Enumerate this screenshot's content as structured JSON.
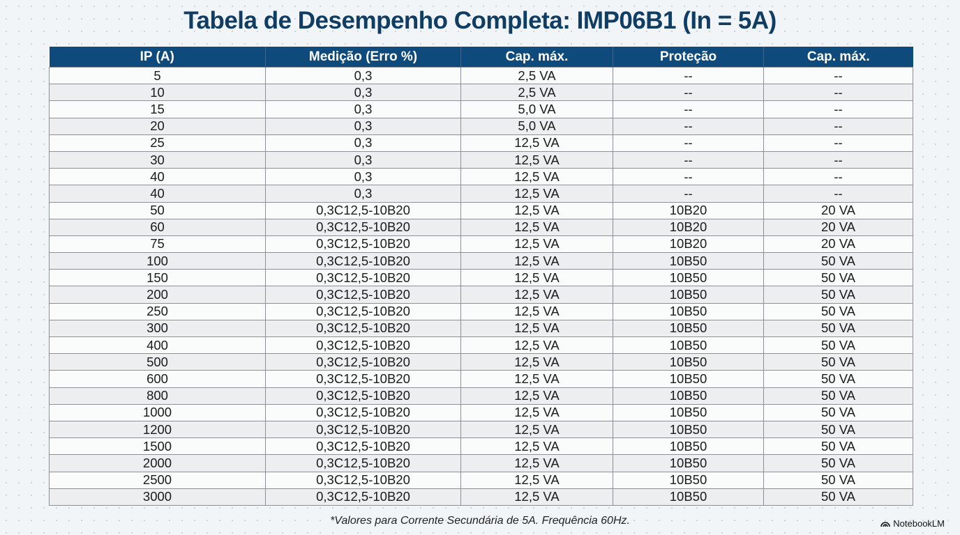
{
  "title": "Tabela de Desempenho Completa: IMP06B1 (In = 5A)",
  "table": {
    "headers": [
      "IP (A)",
      "Medição (Erro %)",
      "Cap. máx.",
      "Proteção",
      "Cap. máx."
    ],
    "rows": [
      [
        "5",
        "0,3",
        "2,5 VA",
        "--",
        "--"
      ],
      [
        "10",
        "0,3",
        "2,5 VA",
        "--",
        "--"
      ],
      [
        "15",
        "0,3",
        "5,0 VA",
        "--",
        "--"
      ],
      [
        "20",
        "0,3",
        "5,0 VA",
        "--",
        "--"
      ],
      [
        "25",
        "0,3",
        "12,5 VA",
        "--",
        "--"
      ],
      [
        "30",
        "0,3",
        "12,5 VA",
        "--",
        "--"
      ],
      [
        "40",
        "0,3",
        "12,5 VA",
        "--",
        "--"
      ],
      [
        "40",
        "0,3",
        "12,5 VA",
        "--",
        "--"
      ],
      [
        "50",
        "0,3C12,5-10B20",
        "12,5 VA",
        "10B20",
        "20 VA"
      ],
      [
        "60",
        "0,3C12,5-10B20",
        "12,5 VA",
        "10B20",
        "20 VA"
      ],
      [
        "75",
        "0,3C12,5-10B20",
        "12,5 VA",
        "10B20",
        "20 VA"
      ],
      [
        "100",
        "0,3C12,5-10B20",
        "12,5 VA",
        "10B50",
        "50 VA"
      ],
      [
        "150",
        "0,3C12,5-10B20",
        "12,5 VA",
        "10B50",
        "50 VA"
      ],
      [
        "200",
        "0,3C12,5-10B20",
        "12,5 VA",
        "10B50",
        "50 VA"
      ],
      [
        "250",
        "0,3C12,5-10B20",
        "12,5 VA",
        "10B50",
        "50 VA"
      ],
      [
        "300",
        "0,3C12,5-10B20",
        "12,5 VA",
        "10B50",
        "50 VA"
      ],
      [
        "400",
        "0,3C12,5-10B20",
        "12,5 VA",
        "10B50",
        "50 VA"
      ],
      [
        "500",
        "0,3C12,5-10B20",
        "12,5 VA",
        "10B50",
        "50 VA"
      ],
      [
        "600",
        "0,3C12,5-10B20",
        "12,5 VA",
        "10B50",
        "50 VA"
      ],
      [
        "800",
        "0,3C12,5-10B20",
        "12,5 VA",
        "10B50",
        "50 VA"
      ],
      [
        "1000",
        "0,3C12,5-10B20",
        "12,5 VA",
        "10B50",
        "50 VA"
      ],
      [
        "1200",
        "0,3C12,5-10B20",
        "12,5 VA",
        "10B50",
        "50 VA"
      ],
      [
        "1500",
        "0,3C12,5-10B20",
        "12,5 VA",
        "10B50",
        "50 VA"
      ],
      [
        "2000",
        "0,3C12,5-10B20",
        "12,5 VA",
        "10B50",
        "50 VA"
      ],
      [
        "2500",
        "0,3C12,5-10B20",
        "12,5 VA",
        "10B50",
        "50 VA"
      ],
      [
        "3000",
        "0,3C12,5-10B20",
        "12,5 VA",
        "10B50",
        "50 VA"
      ]
    ]
  },
  "footnote": "*Valores para Corrente Secundária de 5A. Frequência 60Hz.",
  "brand": {
    "label": "NotebookLM",
    "icon": "notebooklm-logo-icon"
  },
  "colors": {
    "header_bg": "#0f4a7d",
    "title": "#0f3d63"
  }
}
